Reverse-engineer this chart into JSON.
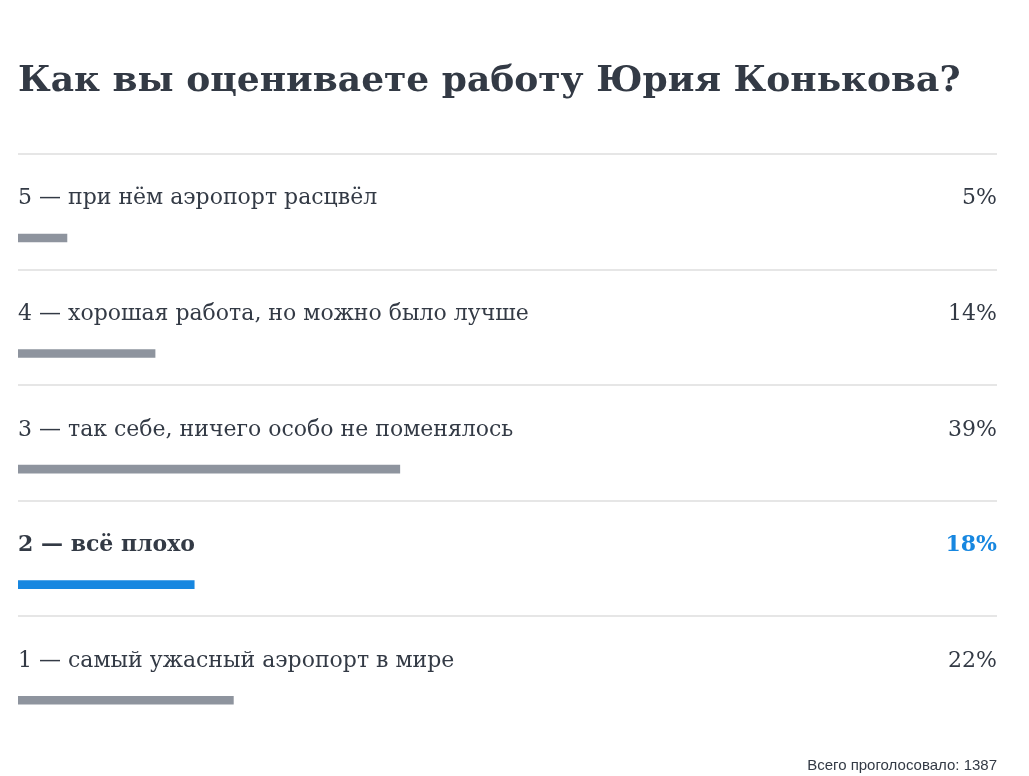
{
  "chart_data": {
    "type": "bar",
    "orientation": "horizontal",
    "title": "Как вы оцениваете работу Юрия Конькова?",
    "categories": [
      "5 — при нём аэропорт расцвёл",
      "4 — хорошая работа, но можно было лучше",
      "3 — так себе, ничего особо не поменялось",
      "2 — всё плохо",
      "1 — самый ужасный аэропорт в мире"
    ],
    "values": [
      5,
      14,
      39,
      18,
      22
    ],
    "value_labels": [
      "5%",
      "14%",
      "39%",
      "18%",
      "22%"
    ],
    "colors": [
      "#8e949e",
      "#8e949e",
      "#8e949e",
      "#1787e0",
      "#8e949e"
    ],
    "xlim": [
      0,
      100
    ],
    "tick_labels": "y",
    "grid": "y",
    "annotations": [
      "Всего проголосовало: 1387"
    ]
  }
}
